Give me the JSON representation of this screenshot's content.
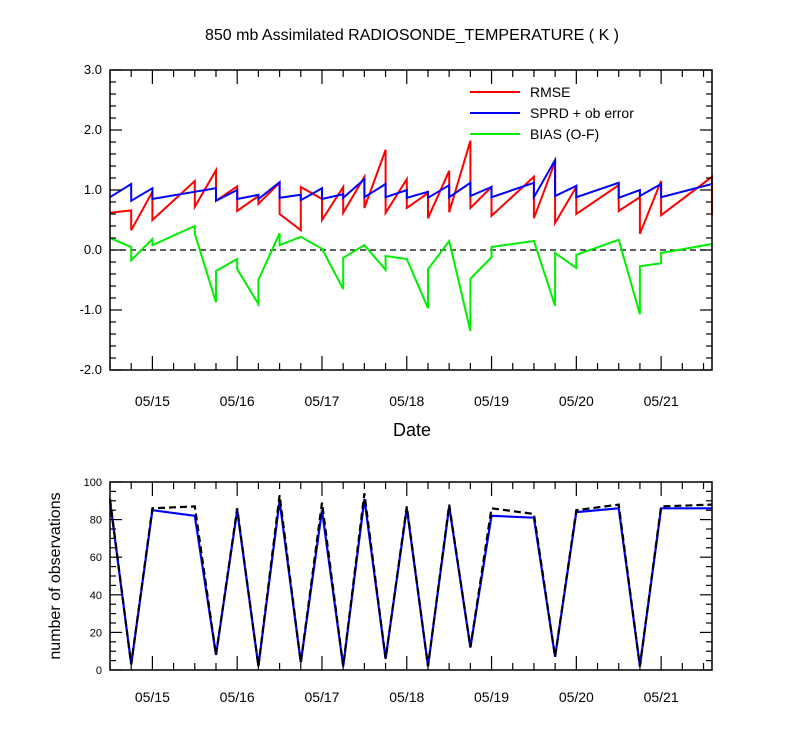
{
  "chart_data": [
    {
      "type": "line",
      "title": "850 mb Assimilated RADIOSONDE_TEMPERATURE ( K )",
      "xlabel": "Date",
      "ylabel": "",
      "xlim": [
        14.5,
        21.6
      ],
      "ylim": [
        -2.0,
        3.0
      ],
      "x_ticks": [
        15,
        16,
        17,
        18,
        19,
        20,
        21
      ],
      "x_tick_labels": [
        "05/15",
        "05/16",
        "05/17",
        "05/18",
        "05/19",
        "05/20",
        "05/21"
      ],
      "y_ticks": [
        -2,
        -1,
        0,
        1,
        2,
        3
      ],
      "y_tick_labels": [
        "-2.0",
        "-1.0",
        "0.0",
        "1.0",
        "2.0",
        "3.0"
      ],
      "zero_line": true,
      "grid": false,
      "legend_position": "top-right",
      "series": [
        {
          "name": "RMSE",
          "color": "#ff0000",
          "points": [
            [
              14.5,
              0.62
            ],
            [
              14.75,
              0.66
            ],
            [
              14.75,
              0.33
            ],
            [
              15.0,
              0.97
            ],
            [
              15.0,
              0.5
            ],
            [
              15.5,
              1.15
            ],
            [
              15.5,
              0.72
            ],
            [
              15.75,
              1.33
            ],
            [
              15.75,
              0.82
            ],
            [
              16.0,
              1.06
            ],
            [
              16.0,
              0.65
            ],
            [
              16.25,
              0.9
            ],
            [
              16.25,
              0.77
            ],
            [
              16.5,
              1.12
            ],
            [
              16.5,
              0.6
            ],
            [
              16.75,
              0.33
            ],
            [
              16.75,
              1.05
            ],
            [
              17.0,
              0.85
            ],
            [
              17.0,
              0.5
            ],
            [
              17.25,
              1.05
            ],
            [
              17.25,
              0.62
            ],
            [
              17.5,
              1.22
            ],
            [
              17.5,
              0.7
            ],
            [
              17.75,
              1.67
            ],
            [
              17.75,
              0.62
            ],
            [
              18.0,
              1.18
            ],
            [
              18.0,
              0.7
            ],
            [
              18.25,
              0.95
            ],
            [
              18.25,
              0.53
            ],
            [
              18.5,
              1.32
            ],
            [
              18.5,
              0.63
            ],
            [
              18.75,
              1.82
            ],
            [
              18.75,
              0.7
            ],
            [
              19.0,
              1.05
            ],
            [
              19.0,
              0.57
            ],
            [
              19.5,
              1.22
            ],
            [
              19.5,
              0.53
            ],
            [
              19.75,
              1.47
            ],
            [
              19.75,
              0.45
            ],
            [
              20.0,
              1.05
            ],
            [
              20.0,
              0.6
            ],
            [
              20.5,
              1.08
            ],
            [
              20.5,
              0.65
            ],
            [
              20.75,
              0.88
            ],
            [
              20.75,
              0.27
            ],
            [
              21.0,
              1.15
            ],
            [
              21.0,
              0.58
            ],
            [
              21.6,
              1.22
            ],
            [
              21.6,
              0.58
            ]
          ]
        },
        {
          "name": "SPRD + ob error",
          "color": "#0000ff",
          "points": [
            [
              14.5,
              0.88
            ],
            [
              14.75,
              1.1
            ],
            [
              14.75,
              0.82
            ],
            [
              15.0,
              1.03
            ],
            [
              15.0,
              0.85
            ],
            [
              15.75,
              1.03
            ],
            [
              15.75,
              0.82
            ],
            [
              16.0,
              1.0
            ],
            [
              16.0,
              0.85
            ],
            [
              16.25,
              0.92
            ],
            [
              16.25,
              0.85
            ],
            [
              16.5,
              1.13
            ],
            [
              16.5,
              0.87
            ],
            [
              16.75,
              0.92
            ],
            [
              16.75,
              0.83
            ],
            [
              17.0,
              1.03
            ],
            [
              17.0,
              0.85
            ],
            [
              17.25,
              0.93
            ],
            [
              17.25,
              0.87
            ],
            [
              17.5,
              1.18
            ],
            [
              17.5,
              0.88
            ],
            [
              17.75,
              1.1
            ],
            [
              17.75,
              0.88
            ],
            [
              18.0,
              1.0
            ],
            [
              18.0,
              0.87
            ],
            [
              18.25,
              0.97
            ],
            [
              18.25,
              0.87
            ],
            [
              18.5,
              1.08
            ],
            [
              18.5,
              0.88
            ],
            [
              18.75,
              1.12
            ],
            [
              18.75,
              0.9
            ],
            [
              19.0,
              1.05
            ],
            [
              19.0,
              0.88
            ],
            [
              19.5,
              1.12
            ],
            [
              19.5,
              0.88
            ],
            [
              19.75,
              1.5
            ],
            [
              19.75,
              0.9
            ],
            [
              20.0,
              1.07
            ],
            [
              20.0,
              0.88
            ],
            [
              20.5,
              1.12
            ],
            [
              20.5,
              0.87
            ],
            [
              20.75,
              1.0
            ],
            [
              20.75,
              0.9
            ],
            [
              21.0,
              1.1
            ],
            [
              21.0,
              0.88
            ],
            [
              21.6,
              1.1
            ]
          ]
        },
        {
          "name": "BIAS (O-F)",
          "color": "#00ee00",
          "points": [
            [
              14.5,
              0.2
            ],
            [
              14.75,
              0.05
            ],
            [
              14.75,
              -0.17
            ],
            [
              15.0,
              0.18
            ],
            [
              15.0,
              0.08
            ],
            [
              15.5,
              0.4
            ],
            [
              15.5,
              0.27
            ],
            [
              15.75,
              -0.87
            ],
            [
              15.75,
              -0.35
            ],
            [
              16.0,
              -0.15
            ],
            [
              16.0,
              -0.32
            ],
            [
              16.25,
              -0.9
            ],
            [
              16.25,
              -0.5
            ],
            [
              16.5,
              0.28
            ],
            [
              16.5,
              0.08
            ],
            [
              16.75,
              0.22
            ],
            [
              17.0,
              0.02
            ],
            [
              17.25,
              -0.65
            ],
            [
              17.25,
              -0.13
            ],
            [
              17.5,
              0.08
            ],
            [
              17.75,
              -0.33
            ],
            [
              17.75,
              -0.1
            ],
            [
              18.0,
              -0.15
            ],
            [
              18.25,
              -0.97
            ],
            [
              18.25,
              -0.32
            ],
            [
              18.5,
              0.15
            ],
            [
              18.75,
              -1.35
            ],
            [
              18.75,
              -0.48
            ],
            [
              19.0,
              -0.12
            ],
            [
              19.0,
              0.05
            ],
            [
              19.5,
              0.15
            ],
            [
              19.75,
              -0.93
            ],
            [
              19.75,
              -0.05
            ],
            [
              20.0,
              -0.3
            ],
            [
              20.0,
              -0.08
            ],
            [
              20.5,
              0.17
            ],
            [
              20.75,
              -1.07
            ],
            [
              20.75,
              -0.27
            ],
            [
              21.0,
              -0.22
            ],
            [
              21.0,
              -0.05
            ],
            [
              21.6,
              0.1
            ]
          ]
        }
      ]
    },
    {
      "type": "line",
      "title": "",
      "xlabel": "",
      "ylabel": "number of observations",
      "xlim": [
        14.5,
        21.6
      ],
      "ylim": [
        0,
        100
      ],
      "x_ticks": [
        15,
        16,
        17,
        18,
        19,
        20,
        21
      ],
      "x_tick_labels": [
        "05/15",
        "05/16",
        "05/17",
        "05/18",
        "05/19",
        "05/20",
        "05/21"
      ],
      "y_ticks": [
        0,
        20,
        40,
        60,
        80,
        100
      ],
      "y_tick_labels": [
        "0",
        "20",
        "40",
        "60",
        "80",
        "100"
      ],
      "grid": false,
      "series": [
        {
          "name": "",
          "color": "#0000ff",
          "style": "solid",
          "points": [
            [
              14.5,
              90
            ],
            [
              14.75,
              3
            ],
            [
              15.0,
              85
            ],
            [
              15.5,
              82
            ],
            [
              15.75,
              8
            ],
            [
              16.0,
              85
            ],
            [
              16.25,
              2
            ],
            [
              16.5,
              90
            ],
            [
              16.75,
              4
            ],
            [
              17.0,
              85
            ],
            [
              17.25,
              2
            ],
            [
              17.5,
              91
            ],
            [
              17.75,
              6
            ],
            [
              18.0,
              86
            ],
            [
              18.25,
              2
            ],
            [
              18.5,
              87
            ],
            [
              18.75,
              12
            ],
            [
              19.0,
              82
            ],
            [
              19.5,
              81
            ],
            [
              19.75,
              7
            ],
            [
              20.0,
              84
            ],
            [
              20.5,
              86
            ],
            [
              20.75,
              2
            ],
            [
              21.0,
              86
            ],
            [
              21.6,
              86
            ]
          ]
        },
        {
          "name": "",
          "color": "#000000",
          "style": "dashed",
          "points": [
            [
              14.5,
              91
            ],
            [
              14.75,
              3
            ],
            [
              15.0,
              86
            ],
            [
              15.5,
              87
            ],
            [
              15.75,
              8
            ],
            [
              16.0,
              86
            ],
            [
              16.25,
              2
            ],
            [
              16.5,
              93
            ],
            [
              16.75,
              4
            ],
            [
              17.0,
              89
            ],
            [
              17.25,
              2
            ],
            [
              17.5,
              94
            ],
            [
              17.75,
              6
            ],
            [
              18.0,
              87
            ],
            [
              18.25,
              2
            ],
            [
              18.5,
              88
            ],
            [
              18.75,
              12
            ],
            [
              19.0,
              86
            ],
            [
              19.5,
              83
            ],
            [
              19.75,
              7
            ],
            [
              20.0,
              85
            ],
            [
              20.5,
              88
            ],
            [
              20.75,
              2
            ],
            [
              21.0,
              87
            ],
            [
              21.6,
              88
            ]
          ]
        }
      ]
    }
  ]
}
